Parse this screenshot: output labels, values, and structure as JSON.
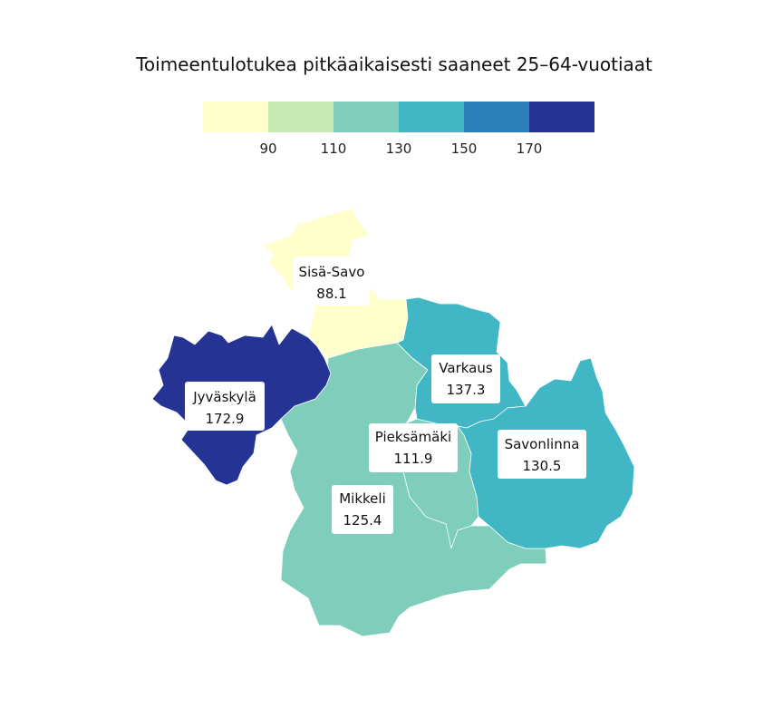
{
  "map": {
    "title": "Toimeentulotukea pitkäaikaisesti saaneet 25–64-vuotiaat",
    "legend": {
      "bins": [
        {
          "color": "#ffffcc"
        },
        {
          "color": "#c7e9b4"
        },
        {
          "color": "#7fcdbb"
        },
        {
          "color": "#41b6c4"
        },
        {
          "color": "#2c7fb8"
        },
        {
          "color": "#253494"
        }
      ],
      "breaks": [
        "90",
        "110",
        "130",
        "150",
        "170"
      ]
    },
    "regions": [
      {
        "id": "sisa-savo",
        "name": "Sisä-Savo",
        "value": "88.1",
        "color": "#ffffcc"
      },
      {
        "id": "jyvaskyla",
        "name": "Jyväskylä",
        "value": "172.9",
        "color": "#253494"
      },
      {
        "id": "varkaus",
        "name": "Varkaus",
        "value": "137.3",
        "color": "#41b6c4"
      },
      {
        "id": "savonlinna",
        "name": "Savonlinna",
        "value": "130.5",
        "color": "#41b6c4"
      },
      {
        "id": "pieksamaki",
        "name": "Pieksämäki",
        "value": "111.9",
        "color": "#7fcdbb"
      },
      {
        "id": "mikkeli",
        "name": "Mikkeli",
        "value": "125.4",
        "color": "#7fcdbb"
      }
    ]
  }
}
